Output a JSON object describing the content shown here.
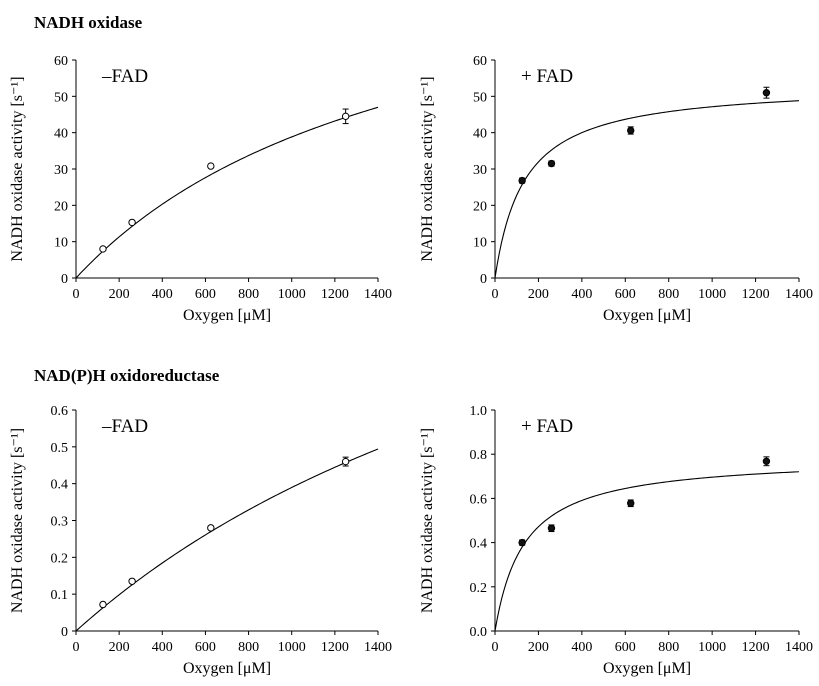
{
  "sections": [
    {
      "title": "NADH oxidase"
    },
    {
      "title": "NAD(P)H oxidoreductase"
    }
  ],
  "chart_data": [
    {
      "type": "scatter",
      "panel_label": "–FAD",
      "xlabel": "Oxygen [μM]",
      "ylabel": "NADH oxidase activity [s⁻¹]",
      "xlim": [
        0,
        1400
      ],
      "ylim": [
        0,
        60
      ],
      "xticks": [
        0,
        200,
        400,
        600,
        800,
        1000,
        1200,
        1400
      ],
      "yticks": [
        0,
        10,
        20,
        30,
        40,
        50,
        60
      ],
      "marker": "open-circle",
      "x": [
        125,
        260,
        625,
        1250
      ],
      "y": [
        8,
        15.3,
        30.8,
        44.5
      ],
      "error": [
        0.3,
        0.3,
        0.4,
        2.0
      ],
      "fit": {
        "model": "michaelis-menten",
        "vmax": 99,
        "km": 1550
      }
    },
    {
      "type": "scatter",
      "panel_label": "+ FAD",
      "xlabel": "Oxygen [μM]",
      "ylabel": "NADH oxidase activity [s⁻¹]",
      "xlim": [
        0,
        1400
      ],
      "ylim": [
        0,
        60
      ],
      "xticks": [
        0,
        200,
        400,
        600,
        800,
        1000,
        1200,
        1400
      ],
      "yticks": [
        0,
        10,
        20,
        30,
        40,
        50,
        60
      ],
      "marker": "filled-circle",
      "x": [
        125,
        260,
        625,
        1250
      ],
      "y": [
        26.8,
        31.5,
        40.6,
        51
      ],
      "error": [
        0.7,
        0.7,
        1.0,
        1.5
      ],
      "fit": {
        "model": "michaelis-menten",
        "vmax": 53.5,
        "km": 135
      }
    },
    {
      "type": "scatter",
      "panel_label": "–FAD",
      "xlabel": "Oxygen [μM]",
      "ylabel": "NADH oxidase activity [s⁻¹]",
      "xlim": [
        0,
        1400
      ],
      "ylim": [
        0,
        0.6
      ],
      "xticks": [
        0,
        200,
        400,
        600,
        800,
        1000,
        1200,
        1400
      ],
      "yticks": [
        0,
        0.1,
        0.2,
        0.3,
        0.4,
        0.5,
        0.6
      ],
      "marker": "open-circle",
      "x": [
        125,
        260,
        625,
        1250
      ],
      "y": [
        0.072,
        0.135,
        0.28,
        0.46
      ],
      "error": [
        0.003,
        0.004,
        0.005,
        0.012
      ],
      "fit": {
        "model": "michaelis-menten",
        "vmax": 1.5,
        "km": 2850
      }
    },
    {
      "type": "scatter",
      "panel_label": "+ FAD",
      "xlabel": "Oxygen [μM]",
      "ylabel": "NADH oxidase activity [s⁻¹]",
      "xlim": [
        0,
        1400
      ],
      "ylim": [
        0,
        1.0
      ],
      "xticks": [
        0,
        200,
        400,
        600,
        800,
        1000,
        1200,
        1400
      ],
      "yticks": [
        0.0,
        0.2,
        0.4,
        0.6,
        0.8,
        1.0
      ],
      "ytick_labels": [
        "0.0",
        "0.2",
        "0.4",
        "0.6",
        "0.8",
        "1.0"
      ],
      "marker": "filled-circle",
      "x": [
        125,
        260,
        625,
        1250
      ],
      "y": [
        0.4,
        0.465,
        0.578,
        0.768
      ],
      "error": [
        0.012,
        0.015,
        0.015,
        0.02
      ],
      "fit": {
        "model": "michaelis-menten",
        "vmax": 0.79,
        "km": 135
      }
    }
  ]
}
